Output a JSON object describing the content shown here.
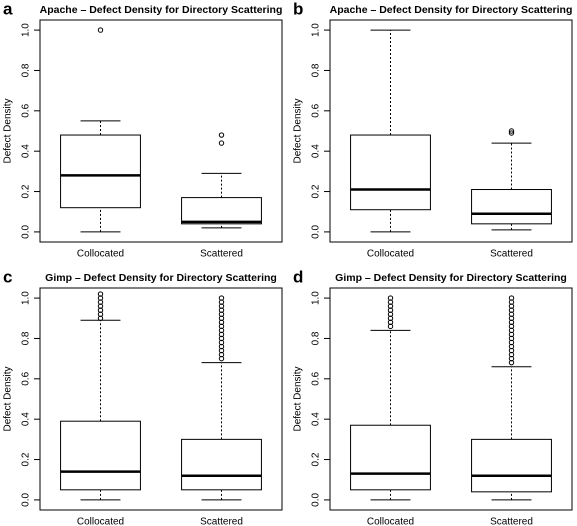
{
  "chart_data": [
    {
      "type": "box",
      "panel": "a",
      "title": "Apache – Defect Density for Directory Scattering",
      "y_label": "Defect Density",
      "categories": [
        "Collocated",
        "Scattered"
      ],
      "boxes": [
        {
          "min": 0,
          "q1": 0.12,
          "median": 0.28,
          "q3": 0.48,
          "max": 0.55,
          "outliers": [
            1.0
          ]
        },
        {
          "min": 0.02,
          "q1": 0.04,
          "median": 0.05,
          "q3": 0.17,
          "max": 0.29,
          "outliers": [
            0.44,
            0.48
          ]
        }
      ],
      "ylim": [
        -0.05,
        1.05
      ],
      "yticks": [
        {
          "value": 0,
          "label": "0.0"
        },
        0.2,
        0.4,
        0.6,
        0.8,
        {
          "value": 1,
          "label": "1.0"
        }
      ]
    },
    {
      "type": "box",
      "panel": "b",
      "title": "Apache – Defect Density for Directory Scattering",
      "y_label": "Defect Density",
      "categories": [
        "Collocated",
        "Scattered"
      ],
      "boxes": [
        {
          "min": 0,
          "q1": 0.11,
          "median": 0.21,
          "q3": 0.48,
          "max": 1.0,
          "outliers": []
        },
        {
          "min": 0.01,
          "q1": 0.04,
          "median": 0.09,
          "q3": 0.21,
          "max": 0.44,
          "outliers": [
            0.49,
            0.5
          ]
        }
      ],
      "ylim": [
        -0.05,
        1.05
      ],
      "yticks": [
        {
          "value": 0,
          "label": "0.0"
        },
        0.2,
        0.4,
        0.6,
        0.8,
        {
          "value": 1,
          "label": "1.0"
        }
      ]
    },
    {
      "type": "box",
      "panel": "c",
      "title": "Gimp – Defect Density for Directory Scattering",
      "y_label": "Defect Density",
      "categories": [
        "Collocated",
        "Scattered"
      ],
      "boxes": [
        {
          "min": 0,
          "q1": 0.05,
          "median": 0.14,
          "q3": 0.39,
          "max": 0.89,
          "outliers": [
            0.9,
            0.92,
            0.94,
            0.96,
            0.98,
            1.0,
            1.02
          ]
        },
        {
          "min": 0,
          "q1": 0.05,
          "median": 0.12,
          "q3": 0.3,
          "max": 0.68,
          "outliers": [
            0.7,
            0.72,
            0.74,
            0.76,
            0.78,
            0.8,
            0.82,
            0.84,
            0.86,
            0.88,
            0.9,
            0.92,
            0.94,
            0.96,
            0.98,
            1.0
          ]
        }
      ],
      "ylim": [
        -0.05,
        1.05
      ],
      "yticks": [
        {
          "value": 0,
          "label": "0.0"
        },
        0.2,
        0.4,
        0.6,
        0.8,
        {
          "value": 1,
          "label": "1.0"
        }
      ]
    },
    {
      "type": "box",
      "panel": "d",
      "title": "Gimp – Defect Density for Directory Scattering",
      "y_label": "Defect Density",
      "categories": [
        "Collocated",
        "Scattered"
      ],
      "boxes": [
        {
          "min": 0,
          "q1": 0.05,
          "median": 0.13,
          "q3": 0.37,
          "max": 0.84,
          "outliers": [
            0.86,
            0.88,
            0.9,
            0.92,
            0.94,
            0.96,
            0.98,
            1.0
          ]
        },
        {
          "min": 0,
          "q1": 0.04,
          "median": 0.12,
          "q3": 0.3,
          "max": 0.66,
          "outliers": [
            0.68,
            0.7,
            0.72,
            0.74,
            0.76,
            0.78,
            0.8,
            0.82,
            0.84,
            0.86,
            0.88,
            0.9,
            0.92,
            0.94,
            0.96,
            0.98,
            1.0
          ]
        }
      ],
      "ylim": [
        -0.05,
        1.05
      ],
      "yticks": [
        {
          "value": 0,
          "label": "0.0"
        },
        0.2,
        0.4,
        0.6,
        0.8,
        {
          "value": 1,
          "label": "1.0"
        }
      ]
    }
  ]
}
